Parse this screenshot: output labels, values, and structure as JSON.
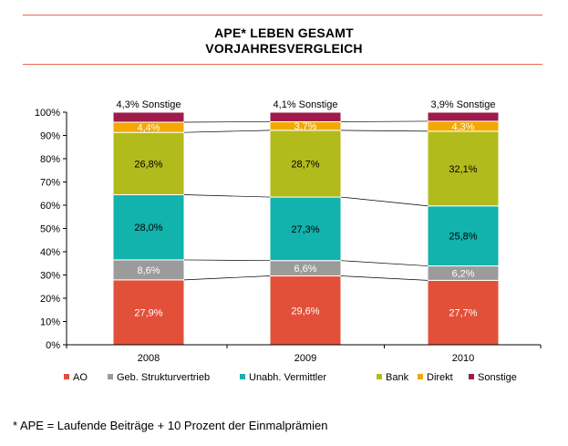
{
  "header": {
    "title_line1": "APE* LEBEN GESAMT",
    "title_line2": "VORJAHRESVERGLEICH"
  },
  "footnote": "* APE = Laufende Beiträge + 10 Prozent der Einmalprämien",
  "chart_data": {
    "type": "bar",
    "stacked": true,
    "categories": [
      "2008",
      "2009",
      "2010"
    ],
    "ylim": [
      0,
      100
    ],
    "yticks": [
      "0%",
      "10%",
      "20%",
      "30%",
      "40%",
      "50%",
      "60%",
      "70%",
      "80%",
      "90%",
      "100%"
    ],
    "legend_position": "bottom",
    "grid": false,
    "series": [
      {
        "name": "AO",
        "color": "#e2503a",
        "values": [
          27.9,
          29.6,
          27.7
        ],
        "labels": [
          "27,9%",
          "29,6%",
          "27,7%"
        ],
        "label_color": "#ffffff"
      },
      {
        "name": "Geb. Strukturvertrieb",
        "color": "#9b9b9b",
        "values": [
          8.6,
          6.6,
          6.2
        ],
        "labels": [
          "8,6%",
          "6,6%",
          "6,2%"
        ],
        "label_color": "#ffffff"
      },
      {
        "name": "Unabh. Vermittler",
        "color": "#12b2ad",
        "values": [
          28.0,
          27.3,
          25.8
        ],
        "labels": [
          "28,0%",
          "27,3%",
          "25,8%"
        ],
        "label_color": "#000000"
      },
      {
        "name": "Bank",
        "color": "#b2bb1c",
        "values": [
          26.8,
          28.7,
          32.1
        ],
        "labels": [
          "26,8%",
          "28,7%",
          "32,1%"
        ],
        "label_color": "#000000"
      },
      {
        "name": "Direkt",
        "color": "#f2a800",
        "values": [
          4.4,
          3.7,
          4.3
        ],
        "labels": [
          "4,4%",
          "3,7%",
          "4,3%"
        ],
        "label_color": "#ffffff"
      },
      {
        "name": "Sonstige",
        "color": "#9e1b4b",
        "values": [
          4.3,
          4.1,
          3.9
        ],
        "labels": [],
        "label_color": "#ffffff"
      }
    ],
    "annotations": [
      "4,3% Sonstige",
      "4,1% Sonstige",
      "3,9% Sonstige"
    ]
  }
}
